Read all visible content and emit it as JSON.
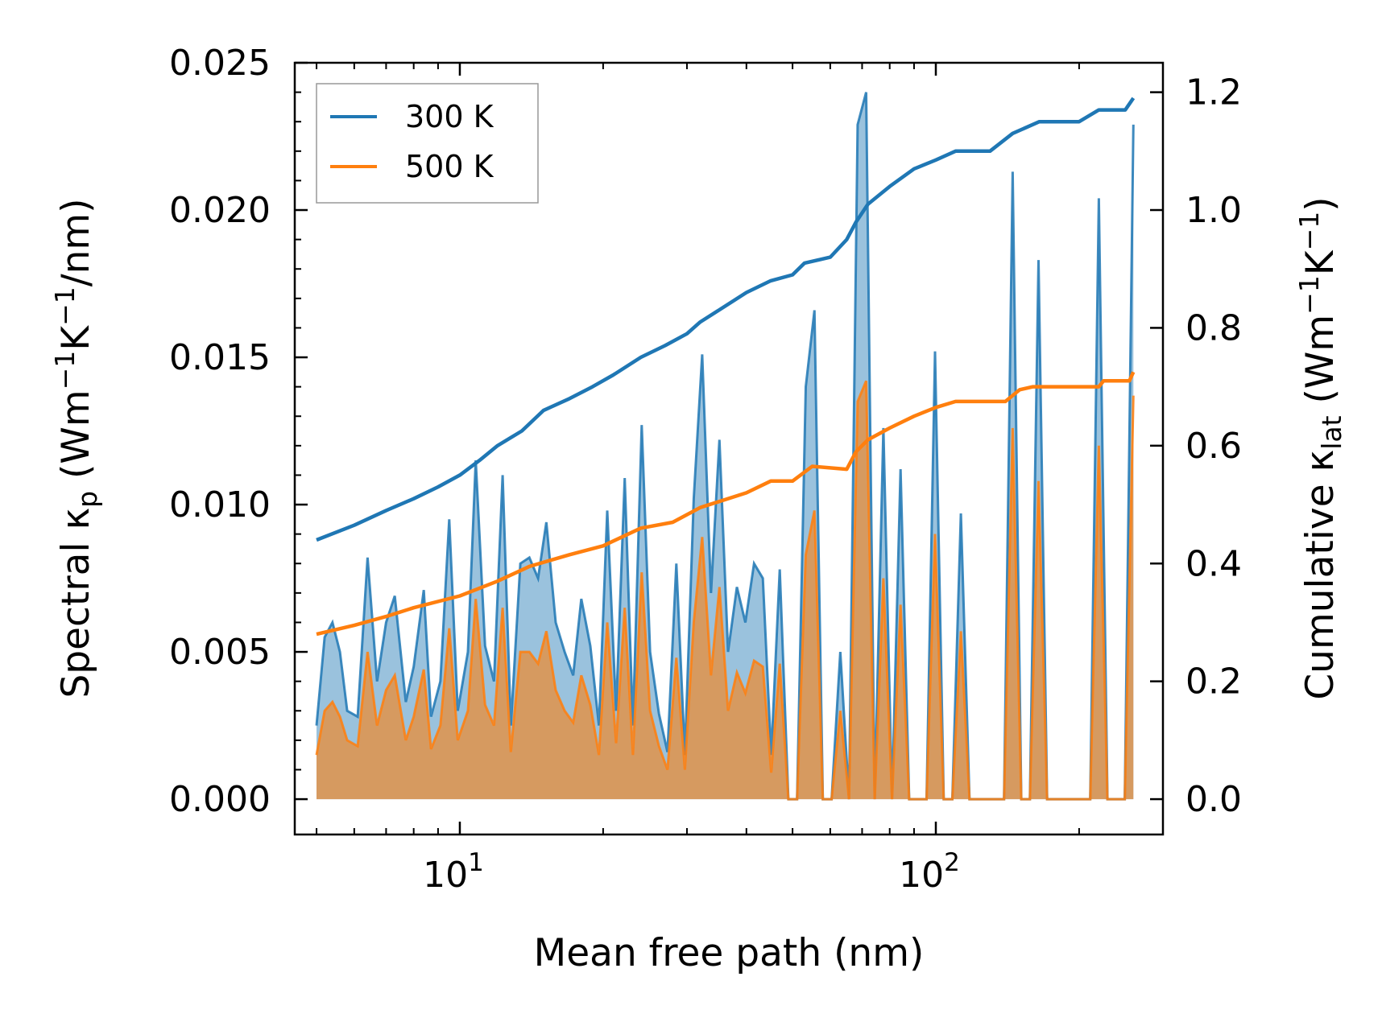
{
  "chart_data": {
    "type": "line",
    "title": "",
    "xlabel": "Mean free path (nm)",
    "xscale": "log",
    "xlim": [
      4.5,
      300
    ],
    "x_ticks": [
      {
        "value": 10,
        "base": "10",
        "exp": "1"
      },
      {
        "value": 100,
        "base": "10",
        "exp": "2"
      }
    ],
    "left_axis": {
      "label_prefix": "Spectral κ",
      "label_sub": "p",
      "label_units_open": " (Wm",
      "label_sup1": "−1",
      "label_mid": "K",
      "label_sup2": "−1",
      "label_units_close": "/nm)",
      "ylim": [
        -0.0012,
        0.025
      ],
      "ticks": [
        0.0,
        0.005,
        0.01,
        0.015,
        0.02,
        0.025
      ],
      "tick_labels": [
        "0.000",
        "0.005",
        "0.010",
        "0.015",
        "0.020",
        "0.025"
      ]
    },
    "right_axis": {
      "label_prefix": "Cumulative κ",
      "label_sub": "lat",
      "label_units_open": " (Wm",
      "label_sup1": "−1",
      "label_mid": "K",
      "label_sup2": "−1",
      "label_units_close": ")",
      "ylim": [
        -0.06,
        1.25
      ],
      "ticks": [
        0.0,
        0.2,
        0.4,
        0.6,
        0.8,
        1.0,
        1.2
      ],
      "tick_labels": [
        "0.0",
        "0.2",
        "0.4",
        "0.6",
        "0.8",
        "1.0",
        "1.2"
      ]
    },
    "legend": {
      "position": "top-left",
      "entries": [
        {
          "label": "300 K",
          "color": "#1f77b4"
        },
        {
          "label": "500 K",
          "color": "#ff7f0e"
        }
      ]
    },
    "series_spectral": [
      {
        "name": "300 K",
        "color": "#1f77b4",
        "points": [
          [
            5.0,
            0.0025
          ],
          [
            5.2,
            0.0055
          ],
          [
            5.4,
            0.006
          ],
          [
            5.6,
            0.005
          ],
          [
            5.8,
            0.003
          ],
          [
            6.1,
            0.0028
          ],
          [
            6.4,
            0.0082
          ],
          [
            6.7,
            0.004
          ],
          [
            7.0,
            0.006
          ],
          [
            7.3,
            0.0069
          ],
          [
            7.7,
            0.0033
          ],
          [
            8.0,
            0.0045
          ],
          [
            8.4,
            0.0071
          ],
          [
            8.7,
            0.0028
          ],
          [
            9.1,
            0.004
          ],
          [
            9.5,
            0.0095
          ],
          [
            9.9,
            0.003
          ],
          [
            10.4,
            0.005
          ],
          [
            10.8,
            0.0115
          ],
          [
            11.3,
            0.0052
          ],
          [
            11.8,
            0.004
          ],
          [
            12.3,
            0.011
          ],
          [
            12.8,
            0.0025
          ],
          [
            13.4,
            0.008
          ],
          [
            14.0,
            0.0082
          ],
          [
            14.6,
            0.0075
          ],
          [
            15.2,
            0.0094
          ],
          [
            15.9,
            0.006
          ],
          [
            16.6,
            0.005
          ],
          [
            17.3,
            0.0042
          ],
          [
            18.0,
            0.0068
          ],
          [
            18.8,
            0.0052
          ],
          [
            19.6,
            0.0025
          ],
          [
            20.4,
            0.0098
          ],
          [
            21.3,
            0.003
          ],
          [
            22.2,
            0.0109
          ],
          [
            23.1,
            0.0025
          ],
          [
            24.1,
            0.0127
          ],
          [
            25.1,
            0.005
          ],
          [
            26.2,
            0.0029
          ],
          [
            27.3,
            0.0016
          ],
          [
            28.5,
            0.008
          ],
          [
            29.7,
            0.0015
          ],
          [
            31.0,
            0.0102
          ],
          [
            32.3,
            0.0151
          ],
          [
            33.7,
            0.007
          ],
          [
            35.1,
            0.0122
          ],
          [
            36.6,
            0.005
          ],
          [
            38.2,
            0.0072
          ],
          [
            39.8,
            0.006
          ],
          [
            41.5,
            0.008
          ],
          [
            43.3,
            0.0075
          ],
          [
            45.1,
            0.0015
          ],
          [
            47.0,
            0.0078
          ],
          [
            49.0,
            0.0
          ],
          [
            51.1,
            0.0
          ],
          [
            53.3,
            0.014
          ],
          [
            55.6,
            0.0166
          ],
          [
            57.9,
            0.0
          ],
          [
            60.4,
            0.0
          ],
          [
            63.0,
            0.005
          ],
          [
            65.7,
            0.0
          ],
          [
            68.5,
            0.0229
          ],
          [
            71.4,
            0.024
          ],
          [
            74.4,
            0.0
          ],
          [
            77.6,
            0.0126
          ],
          [
            80.9,
            0.0
          ],
          [
            84.3,
            0.0112
          ],
          [
            87.9,
            0.0
          ],
          [
            91.7,
            0.0
          ],
          [
            95.6,
            0.0
          ],
          [
            99.6,
            0.0152
          ],
          [
            103.9,
            0.0
          ],
          [
            108.3,
            0.0
          ],
          [
            112.9,
            0.0097
          ],
          [
            117.7,
            0.0
          ],
          [
            122.7,
            0.0
          ],
          [
            128.0,
            0.0
          ],
          [
            133.4,
            0.0
          ],
          [
            139.1,
            0.0
          ],
          [
            145.0,
            0.0213
          ],
          [
            151.2,
            0.0
          ],
          [
            157.6,
            0.0
          ],
          [
            164.3,
            0.0183
          ],
          [
            171.3,
            0.0
          ],
          [
            178.6,
            0.0
          ],
          [
            186.2,
            0.0
          ],
          [
            194.1,
            0.0
          ],
          [
            202.4,
            0.0
          ],
          [
            211.0,
            0.0
          ],
          [
            220.0,
            0.0204
          ],
          [
            229.4,
            0.0
          ],
          [
            239.2,
            0.0
          ],
          [
            249.4,
            0.0
          ],
          [
            260.0,
            0.0229
          ]
        ]
      },
      {
        "name": "500 K",
        "color": "#ff7f0e",
        "points": [
          [
            5.0,
            0.0015
          ],
          [
            5.2,
            0.003
          ],
          [
            5.4,
            0.0033
          ],
          [
            5.6,
            0.0028
          ],
          [
            5.8,
            0.002
          ],
          [
            6.1,
            0.0018
          ],
          [
            6.4,
            0.005
          ],
          [
            6.7,
            0.0025
          ],
          [
            7.0,
            0.0037
          ],
          [
            7.3,
            0.0042
          ],
          [
            7.7,
            0.002
          ],
          [
            8.0,
            0.0028
          ],
          [
            8.4,
            0.0044
          ],
          [
            8.7,
            0.0017
          ],
          [
            9.1,
            0.0025
          ],
          [
            9.5,
            0.0058
          ],
          [
            9.9,
            0.002
          ],
          [
            10.4,
            0.003
          ],
          [
            10.8,
            0.0068
          ],
          [
            11.3,
            0.0032
          ],
          [
            11.8,
            0.0025
          ],
          [
            12.3,
            0.0065
          ],
          [
            12.8,
            0.0016
          ],
          [
            13.4,
            0.005
          ],
          [
            14.0,
            0.005
          ],
          [
            14.6,
            0.0046
          ],
          [
            15.2,
            0.0057
          ],
          [
            15.9,
            0.0037
          ],
          [
            16.6,
            0.003
          ],
          [
            17.3,
            0.0026
          ],
          [
            18.0,
            0.0042
          ],
          [
            18.8,
            0.0032
          ],
          [
            19.6,
            0.0015
          ],
          [
            20.4,
            0.006
          ],
          [
            21.3,
            0.0019
          ],
          [
            22.2,
            0.0065
          ],
          [
            23.1,
            0.0015
          ],
          [
            24.1,
            0.0077
          ],
          [
            25.1,
            0.003
          ],
          [
            26.2,
            0.0018
          ],
          [
            27.3,
            0.001
          ],
          [
            28.5,
            0.0048
          ],
          [
            29.7,
            0.001
          ],
          [
            31.0,
            0.006
          ],
          [
            32.3,
            0.0089
          ],
          [
            33.7,
            0.0042
          ],
          [
            35.1,
            0.0072
          ],
          [
            36.6,
            0.003
          ],
          [
            38.2,
            0.0043
          ],
          [
            39.8,
            0.0036
          ],
          [
            41.5,
            0.0047
          ],
          [
            43.3,
            0.0045
          ],
          [
            45.1,
            0.0009
          ],
          [
            47.0,
            0.0046
          ],
          [
            49.0,
            0.0
          ],
          [
            51.1,
            0.0
          ],
          [
            53.3,
            0.0083
          ],
          [
            55.6,
            0.0098
          ],
          [
            57.9,
            0.0
          ],
          [
            60.4,
            0.0
          ],
          [
            63.0,
            0.003
          ],
          [
            65.7,
            0.0
          ],
          [
            68.5,
            0.0135
          ],
          [
            71.4,
            0.0142
          ],
          [
            74.4,
            0.0
          ],
          [
            77.6,
            0.0075
          ],
          [
            80.9,
            0.0
          ],
          [
            84.3,
            0.0066
          ],
          [
            87.9,
            0.0
          ],
          [
            91.7,
            0.0
          ],
          [
            95.6,
            0.0
          ],
          [
            99.6,
            0.009
          ],
          [
            103.9,
            0.0
          ],
          [
            108.3,
            0.0
          ],
          [
            112.9,
            0.0057
          ],
          [
            117.7,
            0.0
          ],
          [
            122.7,
            0.0
          ],
          [
            128.0,
            0.0
          ],
          [
            133.4,
            0.0
          ],
          [
            139.1,
            0.0
          ],
          [
            145.0,
            0.0126
          ],
          [
            151.2,
            0.0
          ],
          [
            157.6,
            0.0
          ],
          [
            164.3,
            0.0108
          ],
          [
            171.3,
            0.0
          ],
          [
            178.6,
            0.0
          ],
          [
            186.2,
            0.0
          ],
          [
            194.1,
            0.0
          ],
          [
            202.4,
            0.0
          ],
          [
            211.0,
            0.0
          ],
          [
            220.0,
            0.012
          ],
          [
            229.4,
            0.0
          ],
          [
            239.2,
            0.0
          ],
          [
            249.4,
            0.0
          ],
          [
            260.0,
            0.0137
          ]
        ]
      }
    ],
    "series_cumulative": [
      {
        "name": "300 K",
        "color": "#1f77b4",
        "points": [
          [
            5.0,
            0.44
          ],
          [
            6.0,
            0.465
          ],
          [
            7.0,
            0.49
          ],
          [
            8.0,
            0.51
          ],
          [
            9.0,
            0.53
          ],
          [
            10.0,
            0.55
          ],
          [
            11.0,
            0.575
          ],
          [
            12.0,
            0.6
          ],
          [
            13.5,
            0.625
          ],
          [
            15.0,
            0.66
          ],
          [
            17.0,
            0.68
          ],
          [
            19.0,
            0.7
          ],
          [
            21.0,
            0.72
          ],
          [
            24.0,
            0.75
          ],
          [
            27.0,
            0.77
          ],
          [
            30.0,
            0.79
          ],
          [
            32.0,
            0.81
          ],
          [
            35.0,
            0.83
          ],
          [
            40.0,
            0.86
          ],
          [
            45.0,
            0.88
          ],
          [
            50.0,
            0.89
          ],
          [
            53.0,
            0.91
          ],
          [
            60.0,
            0.92
          ],
          [
            65.0,
            0.95
          ],
          [
            68.0,
            0.98
          ],
          [
            72.0,
            1.01
          ],
          [
            80.0,
            1.04
          ],
          [
            90.0,
            1.07
          ],
          [
            100.0,
            1.085
          ],
          [
            110.0,
            1.1
          ],
          [
            130.0,
            1.1
          ],
          [
            145.0,
            1.13
          ],
          [
            165.0,
            1.15
          ],
          [
            200.0,
            1.15
          ],
          [
            220.0,
            1.17
          ],
          [
            250.0,
            1.17
          ],
          [
            260.0,
            1.19
          ]
        ]
      },
      {
        "name": "500 K",
        "color": "#ff7f0e",
        "points": [
          [
            5.0,
            0.28
          ],
          [
            6.0,
            0.295
          ],
          [
            7.0,
            0.31
          ],
          [
            8.0,
            0.325
          ],
          [
            10.0,
            0.345
          ],
          [
            12.0,
            0.37
          ],
          [
            14.0,
            0.395
          ],
          [
            17.0,
            0.415
          ],
          [
            20.0,
            0.43
          ],
          [
            24.0,
            0.46
          ],
          [
            28.0,
            0.47
          ],
          [
            32.0,
            0.495
          ],
          [
            40.0,
            0.52
          ],
          [
            45.0,
            0.54
          ],
          [
            50.0,
            0.54
          ],
          [
            55.0,
            0.565
          ],
          [
            65.0,
            0.56
          ],
          [
            68.0,
            0.59
          ],
          [
            72.0,
            0.61
          ],
          [
            80.0,
            0.63
          ],
          [
            90.0,
            0.65
          ],
          [
            100.0,
            0.665
          ],
          [
            110.0,
            0.675
          ],
          [
            140.0,
            0.675
          ],
          [
            150.0,
            0.695
          ],
          [
            160.0,
            0.7
          ],
          [
            220.0,
            0.7
          ],
          [
            225.0,
            0.71
          ],
          [
            255.0,
            0.71
          ],
          [
            260.0,
            0.725
          ]
        ]
      }
    ]
  }
}
